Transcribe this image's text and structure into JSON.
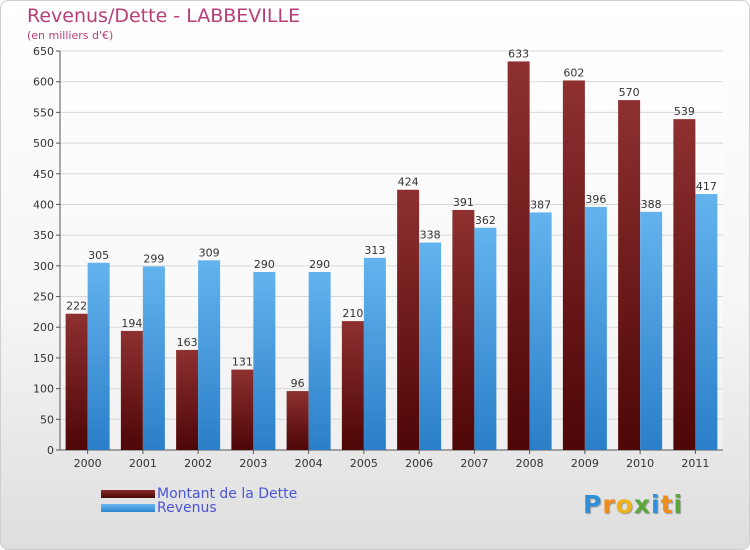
{
  "header": {
    "title": "Revenus/Dette - LABBEVILLE",
    "subtitle": "(en milliers d'€)"
  },
  "colors": {
    "dette": "#7a1f1f",
    "revenus": "#4ea3e2",
    "title": "#b83d78",
    "legend_text": "#4a55d6"
  },
  "legend": {
    "items": [
      {
        "label": "Montant de la Dette",
        "color": "#7a1f1f"
      },
      {
        "label": "Revenus",
        "color": "#4ea3e2"
      }
    ]
  },
  "logo": {
    "letters": [
      {
        "char": "P",
        "color": "#2f8fd8"
      },
      {
        "char": "r",
        "color": "#f08c1a"
      },
      {
        "char": "o",
        "color": "#f0b41a"
      },
      {
        "char": "x",
        "color": "#5aa83a"
      },
      {
        "char": "i",
        "color": "#2f8fd8"
      },
      {
        "char": "t",
        "color": "#f08c1a"
      },
      {
        "char": "i",
        "color": "#5aa83a"
      }
    ]
  },
  "chart_data": {
    "type": "bar",
    "title": "Revenus/Dette - LABBEVILLE",
    "subtitle": "(en milliers d'€)",
    "categories": [
      "2000",
      "2001",
      "2002",
      "2003",
      "2004",
      "2005",
      "2006",
      "2007",
      "2008",
      "2009",
      "2010",
      "2011"
    ],
    "series": [
      {
        "name": "Montant de la Dette",
        "values": [
          222,
          194,
          163,
          131,
          96,
          210,
          424,
          391,
          633,
          602,
          570,
          539
        ]
      },
      {
        "name": "Revenus",
        "values": [
          305,
          299,
          309,
          290,
          290,
          313,
          338,
          362,
          387,
          396,
          388,
          417
        ]
      }
    ],
    "ylim": [
      0,
      650
    ],
    "yticks": [
      0,
      50,
      100,
      150,
      200,
      250,
      300,
      350,
      400,
      450,
      500,
      550,
      600,
      650
    ],
    "grid": true,
    "legend_position": "bottom-left"
  }
}
